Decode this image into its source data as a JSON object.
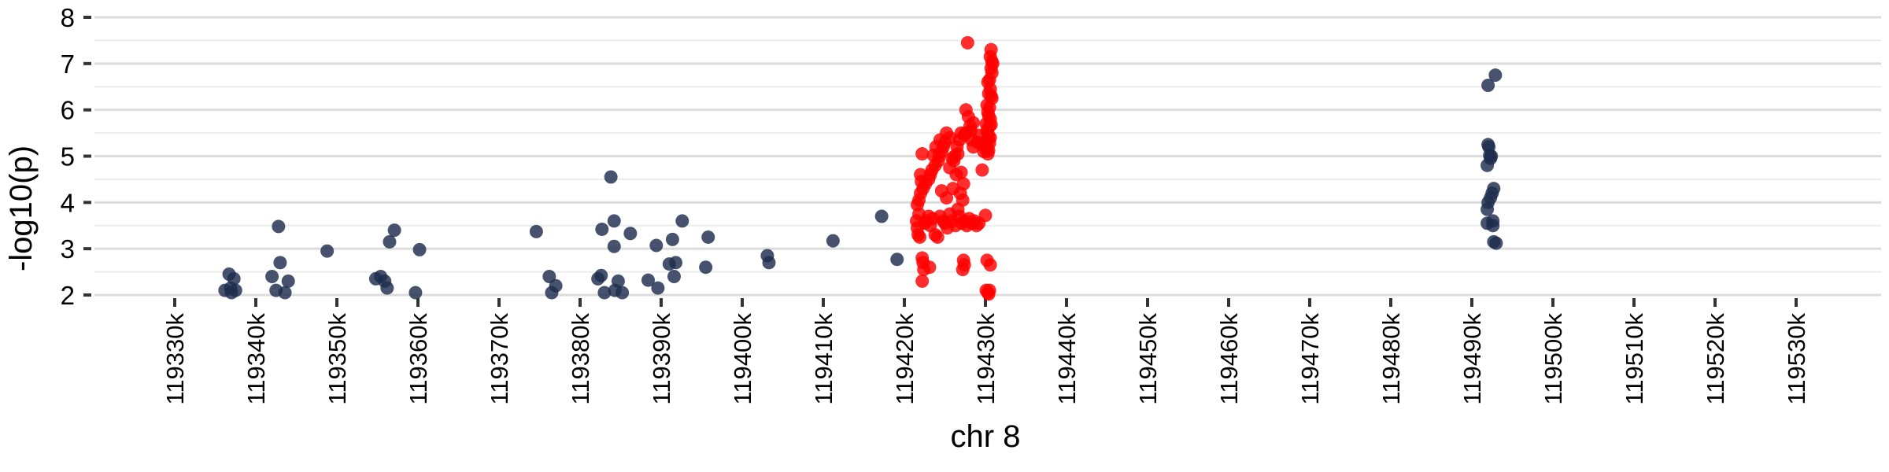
{
  "chart_data": {
    "type": "scatter",
    "title": "",
    "xlabel": "chr 8",
    "ylabel": "-log10(p)",
    "xlim": [
      119322,
      119538
    ],
    "ylim": [
      2,
      8
    ],
    "x_ticks": [
      119330,
      119340,
      119350,
      119360,
      119370,
      119380,
      119390,
      119400,
      119410,
      119420,
      119430,
      119440,
      119450,
      119460,
      119470,
      119480,
      119490,
      119500,
      119510,
      119520,
      119530
    ],
    "x_tick_labels": [
      "119330k",
      "119340k",
      "119350k",
      "119360k",
      "119370k",
      "119380k",
      "119390k",
      "119400k",
      "119410k",
      "119420k",
      "119430k",
      "119440k",
      "119450k",
      "119460k",
      "119470k",
      "119480k",
      "119490k",
      "119500k",
      "119510k",
      "119520k",
      "119530k"
    ],
    "y_ticks": [
      2,
      3,
      4,
      5,
      6,
      7,
      8
    ],
    "y_tick_labels": [
      "2",
      "3",
      "4",
      "5",
      "6",
      "7",
      "8"
    ],
    "grid": true,
    "legend": "none",
    "series": [
      {
        "color": "#1f2d4e",
        "points": [
          [
            119336.7,
            2.45
          ],
          [
            119337.3,
            2.35
          ],
          [
            119336.2,
            2.1
          ],
          [
            119337.0,
            2.05
          ],
          [
            119337.5,
            2.1
          ],
          [
            119336.9,
            2.15
          ],
          [
            119342.0,
            2.4
          ],
          [
            119342.5,
            2.1
          ],
          [
            119343.0,
            2.7
          ],
          [
            119342.8,
            3.48
          ],
          [
            119343.6,
            2.05
          ],
          [
            119344.0,
            2.3
          ],
          [
            119348.8,
            2.95
          ],
          [
            119354.8,
            2.35
          ],
          [
            119355.4,
            2.4
          ],
          [
            119355.9,
            2.3
          ],
          [
            119356.2,
            2.15
          ],
          [
            119356.5,
            3.15
          ],
          [
            119357.1,
            3.4
          ],
          [
            119359.7,
            2.05
          ],
          [
            119360.2,
            2.98
          ],
          [
            119374.6,
            3.37
          ],
          [
            119376.2,
            2.4
          ],
          [
            119376.5,
            2.05
          ],
          [
            119377.0,
            2.2
          ],
          [
            119382.2,
            2.35
          ],
          [
            119382.6,
            2.42
          ],
          [
            119382.7,
            3.42
          ],
          [
            119383.0,
            2.05
          ],
          [
            119383.8,
            4.55
          ],
          [
            119384.2,
            3.05
          ],
          [
            119384.2,
            3.6
          ],
          [
            119384.3,
            2.1
          ],
          [
            119384.7,
            2.3
          ],
          [
            119385.2,
            2.05
          ],
          [
            119386.2,
            3.33
          ],
          [
            119388.4,
            2.32
          ],
          [
            119389.4,
            3.07
          ],
          [
            119389.6,
            2.15
          ],
          [
            119391.0,
            2.67
          ],
          [
            119391.4,
            3.2
          ],
          [
            119391.6,
            2.4
          ],
          [
            119391.8,
            2.7
          ],
          [
            119392.6,
            3.6
          ],
          [
            119395.8,
            3.25
          ],
          [
            119395.5,
            2.6
          ],
          [
            119403.1,
            2.85
          ],
          [
            119403.3,
            2.7
          ],
          [
            119411.2,
            3.17
          ],
          [
            119417.2,
            3.7
          ],
          [
            119419.1,
            2.77
          ],
          [
            119492.0,
            6.53
          ],
          [
            119492.0,
            5.25
          ],
          [
            119492.1,
            5.2
          ],
          [
            119492.2,
            5.02
          ],
          [
            119491.9,
            4.8
          ],
          [
            119492.3,
            4.95
          ],
          [
            119492.4,
            5.0
          ],
          [
            119492.0,
            4.0
          ],
          [
            119491.9,
            3.85
          ],
          [
            119492.3,
            4.1
          ],
          [
            119492.5,
            4.2
          ],
          [
            119492.7,
            4.3
          ],
          [
            119491.9,
            3.55
          ],
          [
            119492.6,
            3.6
          ],
          [
            119492.6,
            3.5
          ],
          [
            119492.7,
            3.15
          ],
          [
            119493.0,
            3.12
          ],
          [
            119492.9,
            6.75
          ]
        ]
      },
      {
        "color": "#ff0000",
        "points": [
          [
            119427.8,
            7.45
          ],
          [
            119430.7,
            7.3
          ],
          [
            119430.6,
            7.15
          ],
          [
            119430.8,
            7.05
          ],
          [
            119430.9,
            7.0
          ],
          [
            119430.7,
            6.9
          ],
          [
            119430.8,
            6.8
          ],
          [
            119430.5,
            6.65
          ],
          [
            119430.3,
            6.6
          ],
          [
            119430.6,
            6.45
          ],
          [
            119430.4,
            6.35
          ],
          [
            119430.7,
            6.3
          ],
          [
            119430.8,
            6.25
          ],
          [
            119430.2,
            6.1
          ],
          [
            119430.5,
            6.05
          ],
          [
            119430.3,
            5.95
          ],
          [
            119430.4,
            5.88
          ],
          [
            119430.6,
            5.8
          ],
          [
            119430.1,
            5.7
          ],
          [
            119430.5,
            5.65
          ],
          [
            119430.7,
            5.68
          ],
          [
            119430.2,
            5.55
          ],
          [
            119430.3,
            5.5
          ],
          [
            119430.4,
            5.42
          ],
          [
            119430.6,
            5.4
          ],
          [
            119430.0,
            5.3
          ],
          [
            119430.5,
            5.28
          ],
          [
            119430.2,
            5.2
          ],
          [
            119430.1,
            5.15
          ],
          [
            119430.4,
            5.12
          ],
          [
            119430.3,
            5.05
          ],
          [
            119429.8,
            5.1
          ],
          [
            119429.6,
            5.25
          ],
          [
            119429.6,
            4.7
          ],
          [
            119429.2,
            5.45
          ],
          [
            119429.0,
            5.3
          ],
          [
            119428.5,
            5.2
          ],
          [
            119428.3,
            5.35
          ],
          [
            119428.2,
            5.55
          ],
          [
            119428.5,
            5.72
          ],
          [
            119427.9,
            5.85
          ],
          [
            119428.1,
            5.65
          ],
          [
            119427.6,
            6.0
          ],
          [
            119427.6,
            5.5
          ],
          [
            119427.4,
            5.45
          ],
          [
            119427.0,
            5.5
          ],
          [
            119426.8,
            5.35
          ],
          [
            119426.5,
            5.2
          ],
          [
            119426.2,
            5.0
          ],
          [
            119425.9,
            4.95
          ],
          [
            119425.6,
            5.4
          ],
          [
            119425.2,
            5.5
          ],
          [
            119425.0,
            5.3
          ],
          [
            119424.8,
            5.2
          ],
          [
            119424.6,
            5.1
          ],
          [
            119424.4,
            5.35
          ],
          [
            119424.3,
            5.0
          ],
          [
            119424.2,
            4.9
          ],
          [
            119423.9,
            5.2
          ],
          [
            119423.8,
            4.8
          ],
          [
            119423.6,
            5.02
          ],
          [
            119423.4,
            4.7
          ],
          [
            119423.2,
            4.6
          ],
          [
            119423.0,
            4.5
          ],
          [
            119422.6,
            4.4
          ],
          [
            119422.3,
            4.3
          ],
          [
            119422.0,
            4.2
          ],
          [
            119421.8,
            4.05
          ],
          [
            119421.6,
            3.95
          ],
          [
            119421.8,
            3.75
          ],
          [
            119421.5,
            3.6
          ],
          [
            119421.6,
            3.45
          ],
          [
            119421.7,
            3.3
          ],
          [
            119421.9,
            3.25
          ],
          [
            119422.2,
            5.05
          ],
          [
            119422.0,
            4.6
          ],
          [
            119422.1,
            4.45
          ],
          [
            119422.5,
            3.55
          ],
          [
            119422.7,
            3.6
          ],
          [
            119423.0,
            3.7
          ],
          [
            119423.2,
            3.5
          ],
          [
            119423.5,
            3.65
          ],
          [
            119423.8,
            3.3
          ],
          [
            119424.1,
            3.25
          ],
          [
            119424.4,
            3.7
          ],
          [
            119424.8,
            3.6
          ],
          [
            119425.0,
            3.55
          ],
          [
            119425.3,
            3.45
          ],
          [
            119425.6,
            3.75
          ],
          [
            119425.9,
            3.6
          ],
          [
            119426.3,
            3.5
          ],
          [
            119426.6,
            3.85
          ],
          [
            119426.8,
            3.7
          ],
          [
            119427.1,
            3.55
          ],
          [
            119427.4,
            3.6
          ],
          [
            119427.7,
            3.5
          ],
          [
            119428.0,
            3.65
          ],
          [
            119428.3,
            3.55
          ],
          [
            119428.6,
            3.6
          ],
          [
            119428.9,
            3.5
          ],
          [
            119429.2,
            3.55
          ],
          [
            119424.6,
            4.25
          ],
          [
            119425.2,
            4.1
          ],
          [
            119426.0,
            4.3
          ],
          [
            119426.4,
            4.6
          ],
          [
            119426.9,
            4.2
          ],
          [
            119427.2,
            4.05
          ],
          [
            119425.6,
            4.75
          ],
          [
            119426.1,
            4.9
          ],
          [
            119427.3,
            4.4
          ],
          [
            119427.0,
            4.65
          ],
          [
            119426.6,
            5.05
          ],
          [
            119422.2,
            2.8
          ],
          [
            119422.3,
            2.7
          ],
          [
            119422.4,
            2.55
          ],
          [
            119422.2,
            2.3
          ],
          [
            119423.1,
            2.6
          ],
          [
            119427.2,
            2.55
          ],
          [
            119427.4,
            2.65
          ],
          [
            119427.3,
            2.75
          ],
          [
            119430.2,
            2.75
          ],
          [
            119430.6,
            2.65
          ],
          [
            119430.0,
            3.72
          ],
          [
            119430.1,
            2.1
          ],
          [
            119430.3,
            2.05
          ],
          [
            119430.5,
            2.1
          ],
          [
            119430.4,
            2.02
          ]
        ]
      }
    ]
  }
}
